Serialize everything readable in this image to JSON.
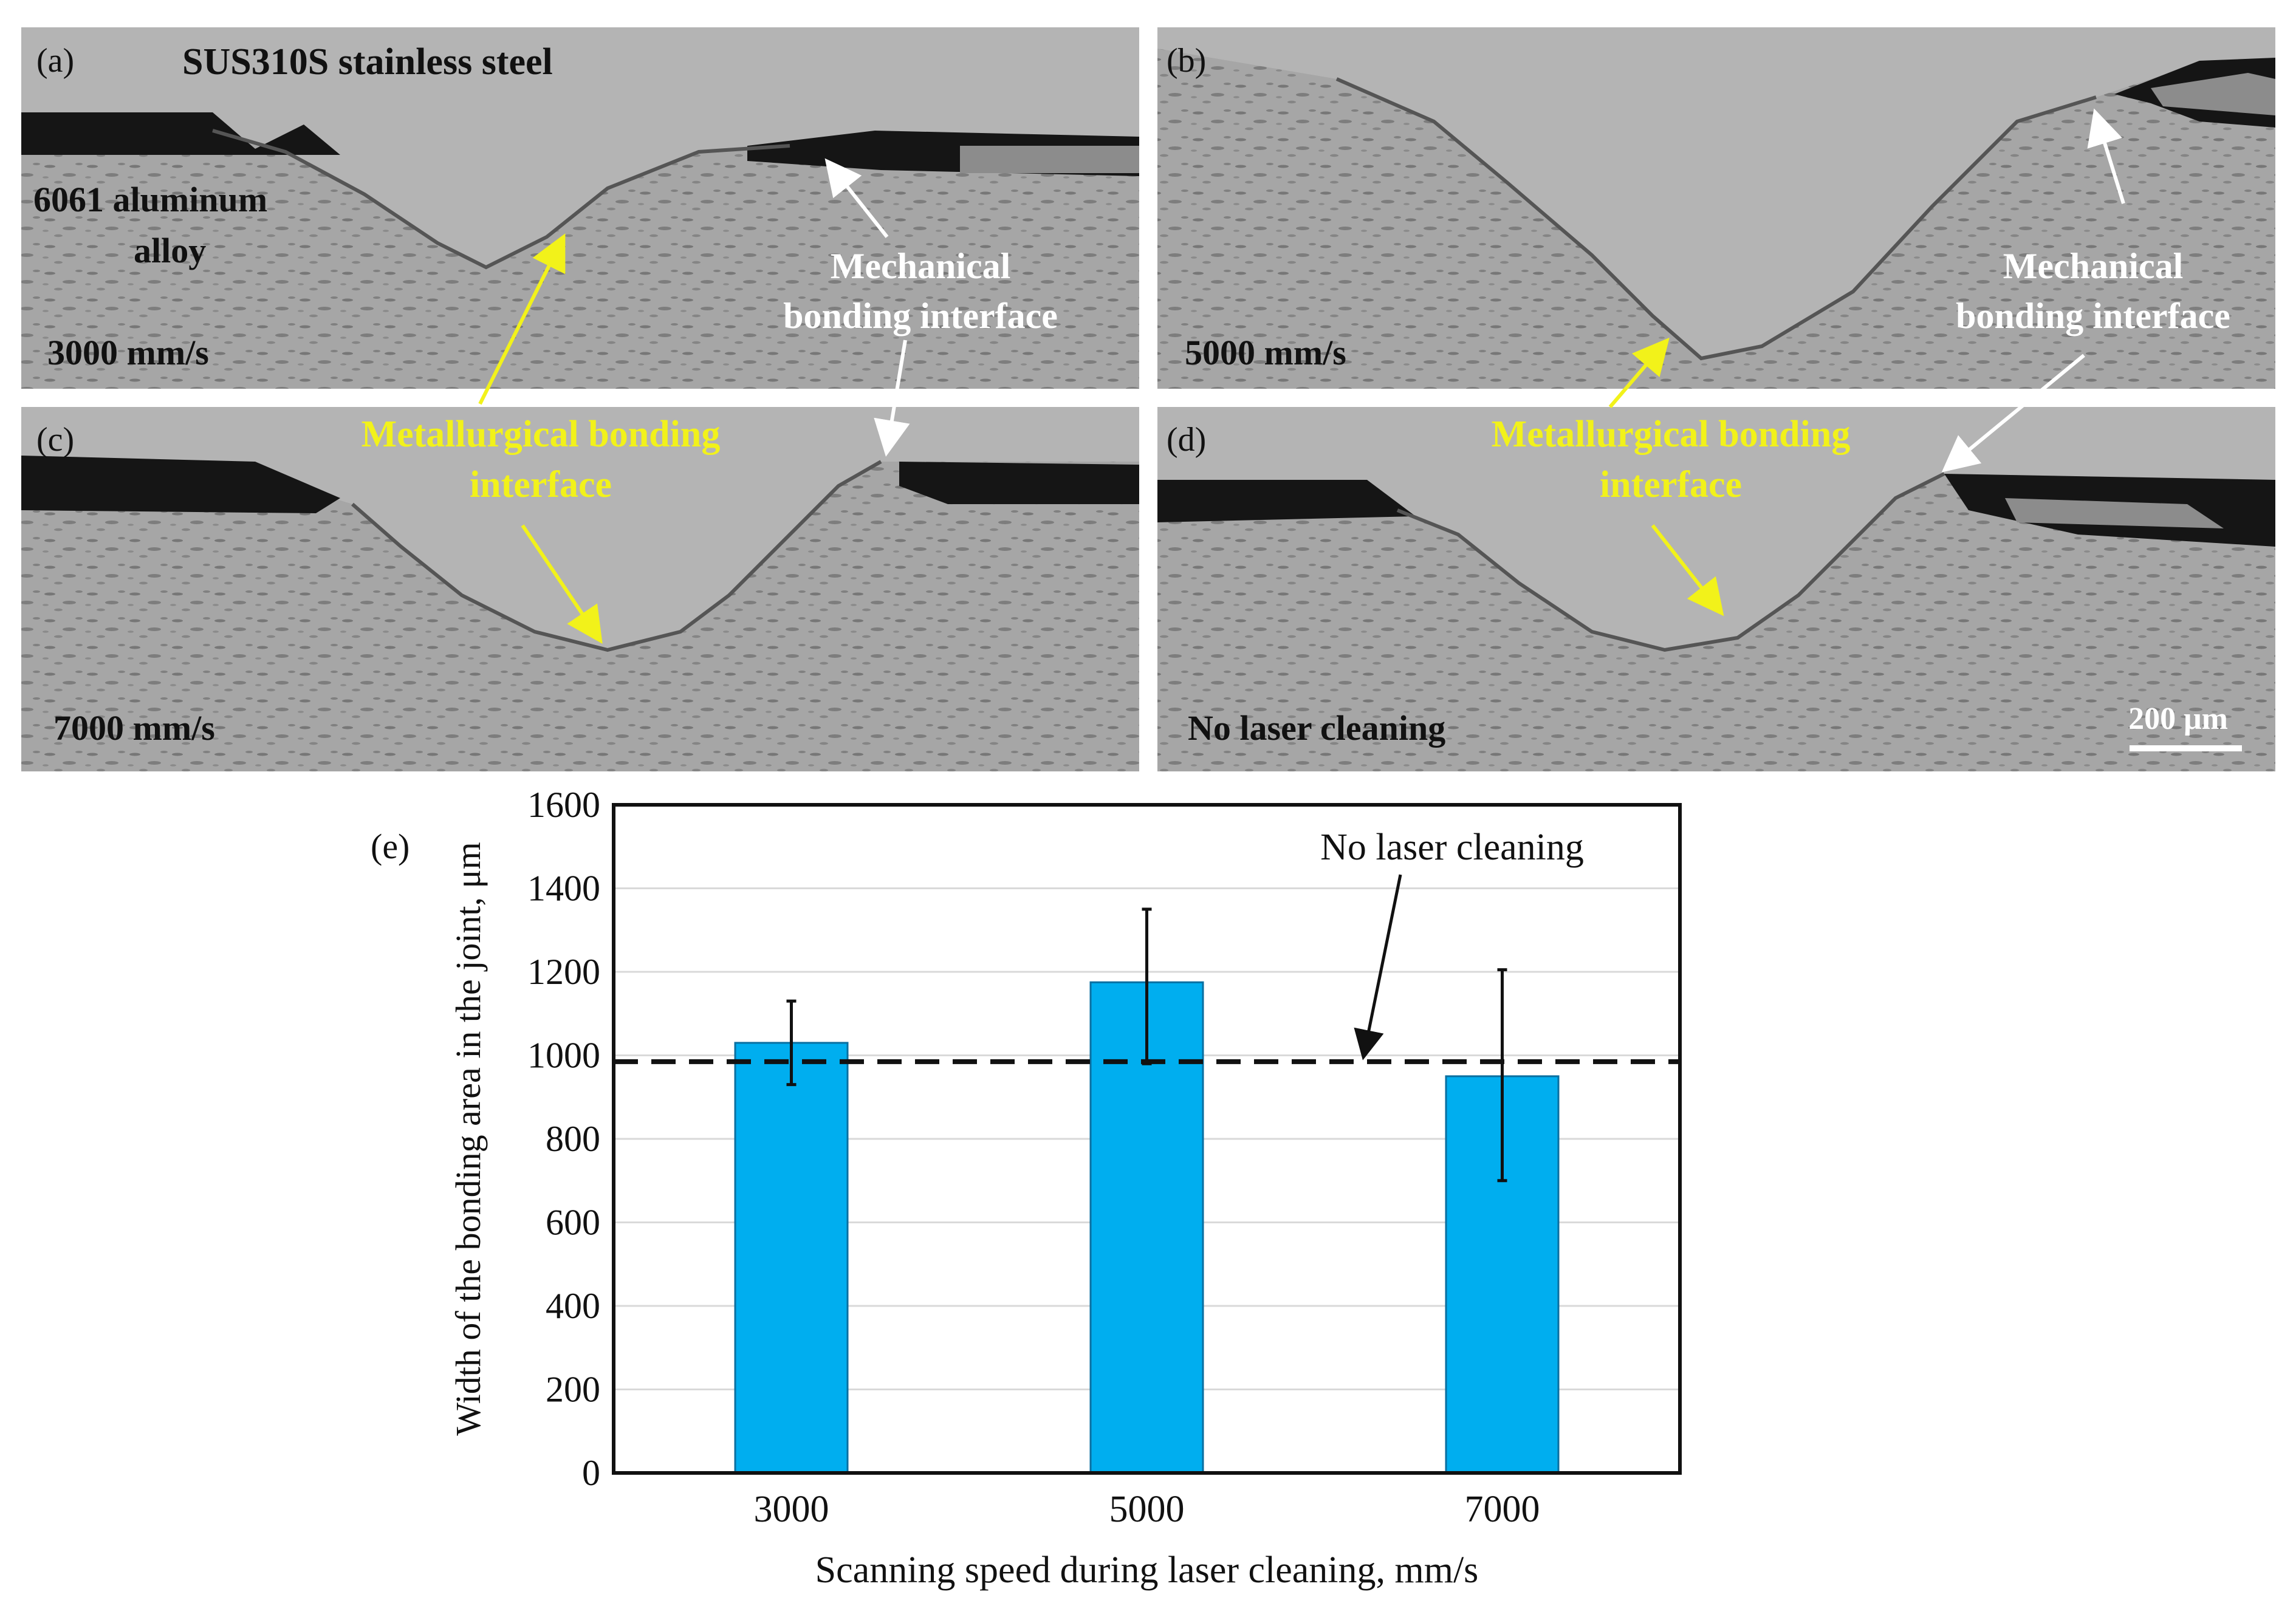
{
  "panels": [
    {
      "letter": "(a)",
      "speed": "3000 mm/s",
      "top_label": "SUS310S stainless steel",
      "side_label_line1": "6061 aluminum",
      "side_label_line2": "alloy",
      "mech_line1": "Mechanical",
      "mech_line2": "bonding interface"
    },
    {
      "letter": "(b)",
      "speed": "5000 mm/s",
      "mech_line1": "Mechanical",
      "mech_line2": "bonding interface"
    },
    {
      "letter": "(c)",
      "speed": "7000 mm/s"
    },
    {
      "letter": "(d)",
      "speed": "No laser cleaning",
      "scale_bar": "200 μm"
    }
  ],
  "metallurgical_label_left_line1": "Metallurgical bonding",
  "metallurgical_label_left_line2": "interface",
  "metallurgical_label_right_line1": "Metallurgical bonding",
  "metallurgical_label_right_line2": "interface",
  "colors": {
    "bar": "#00aeef",
    "annotation_yellow": "#f2f21a",
    "micrograph_base": "#a8a8a8",
    "dark_gap": "#151515"
  },
  "chart_data": {
    "panel_letter": "(e)",
    "type": "bar",
    "categories": [
      "3000",
      "5000",
      "7000"
    ],
    "values": [
      1030,
      1175,
      950
    ],
    "error_low": [
      930,
      980,
      700
    ],
    "error_high": [
      1130,
      1350,
      1205
    ],
    "reference_line": {
      "value": 985,
      "label": "No laser cleaning",
      "style": "dashed"
    },
    "xlabel": "Scanning speed during laser cleaning, mm/s",
    "ylabel": "Width of the bonding area in the joint, μm",
    "ylim": [
      0,
      1600
    ],
    "yticks": [
      0,
      200,
      400,
      600,
      800,
      1000,
      1200,
      1400,
      1600
    ],
    "grid": true
  }
}
